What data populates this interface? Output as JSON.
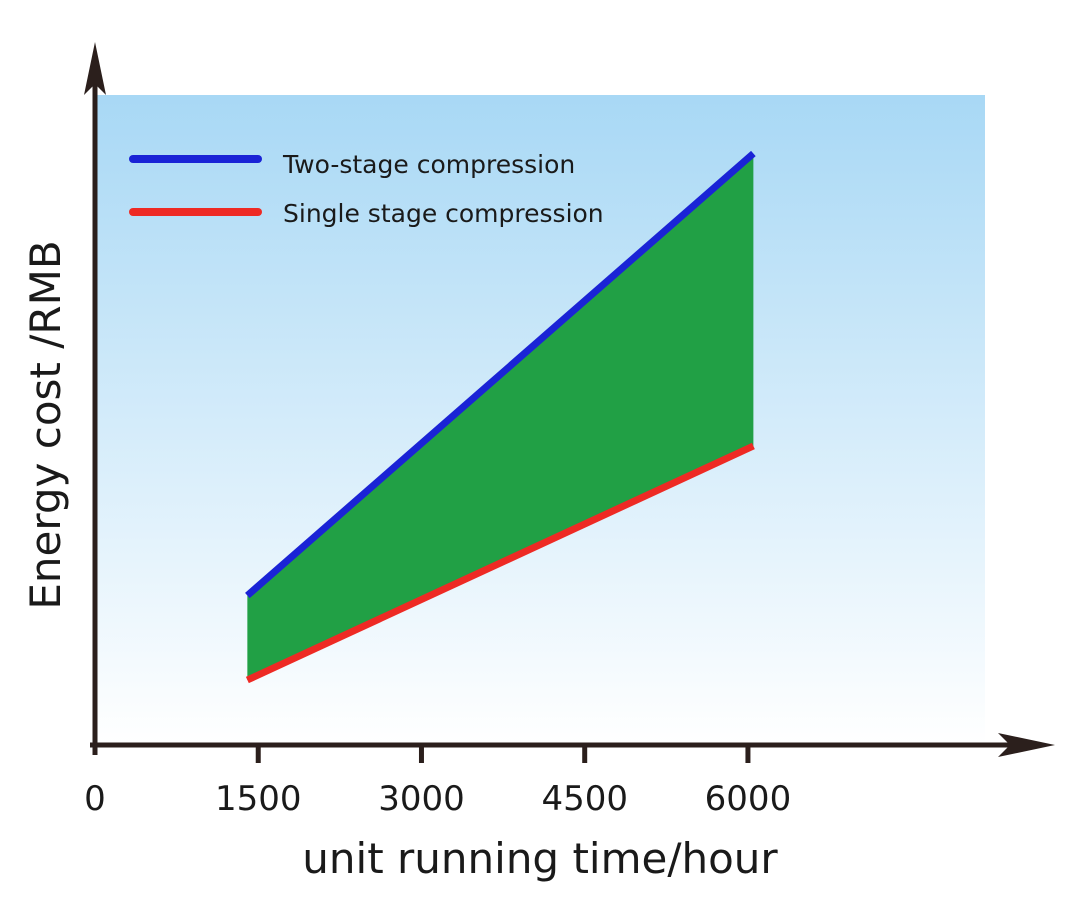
{
  "chart_data": {
    "type": "area",
    "xlabel": "unit running time/hour",
    "ylabel": "Energy cost /RMB",
    "origin_label": "0",
    "x_ticks": [
      1500,
      3000,
      4500,
      6000
    ],
    "xlim": [
      0,
      8500
    ],
    "ylim": [
      0,
      100
    ],
    "y_tick_labels": [],
    "series": [
      {
        "name": "Two-stage compression",
        "x": [
          1400,
          6050
        ],
        "values": [
          23,
          91
        ]
      },
      {
        "name": "Single stage compression",
        "x": [
          1400,
          6050
        ],
        "values": [
          10,
          46
        ]
      }
    ],
    "fill_between": "savings region between the two series",
    "legend_position": "top-left",
    "grid": false
  },
  "colors": {
    "two_stage": "#1a23d6",
    "single_stage": "#ee2a24",
    "fill": "#21a045",
    "background_top": "#a8d8f5",
    "background_bottom": "#ffffff",
    "axis": "#2b1f1c"
  }
}
